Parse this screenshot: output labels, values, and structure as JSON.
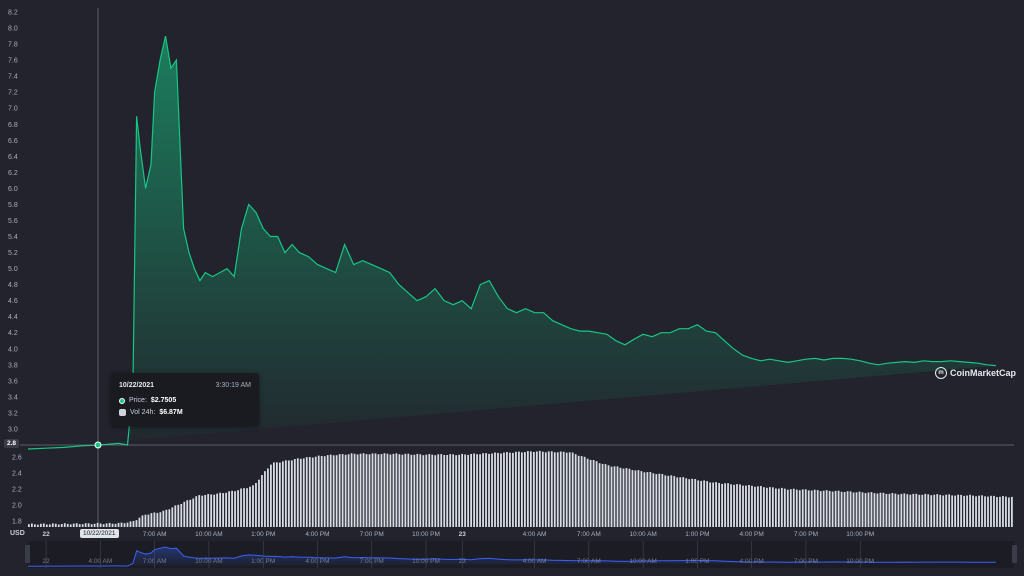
{
  "chart_data": {
    "type": "area",
    "currency_label": "USD",
    "price_axis": {
      "ticks": [
        "8.2",
        "8.0",
        "7.8",
        "7.6",
        "7.4",
        "7.2",
        "7.0",
        "6.8",
        "6.6",
        "6.4",
        "6.2",
        "6.0",
        "5.8",
        "5.6",
        "5.4",
        "5.2",
        "5.0",
        "4.8",
        "4.6",
        "4.4",
        "4.2",
        "4.0",
        "3.8",
        "3.6",
        "3.4",
        "3.2",
        "3.0"
      ],
      "range": [
        2.8,
        8.2
      ]
    },
    "volume_axis": {
      "ticks": [
        "2.6",
        "2.4",
        "2.2",
        "2.0",
        "1.8"
      ]
    },
    "x_ticks": [
      "22",
      "4:00 AM",
      "7:00 AM",
      "10:00 AM",
      "1:00 PM",
      "4:00 PM",
      "7:00 PM",
      "10:00 PM",
      "23",
      "4:00 AM",
      "7:00 AM",
      "10:00 AM",
      "1:00 PM",
      "4:00 PM",
      "7:00 PM",
      "10:00 PM"
    ],
    "bold_x_ticks": [
      "22",
      "23"
    ],
    "series": [
      {
        "x_hours": [
          0,
          1,
          2,
          3,
          4,
          5,
          5.5,
          5.8,
          6.0,
          6.2,
          6.5,
          6.8,
          7.0,
          7.3,
          7.6,
          7.9,
          8.2,
          8.6,
          8.9,
          9.2,
          9.5,
          9.8,
          10.2,
          10.6,
          11.0,
          11.4,
          11.8,
          12.2,
          12.6,
          13.0,
          13.4,
          13.8,
          14.2,
          14.6,
          15.0,
          15.5,
          16.0,
          16.5,
          17.0,
          17.5,
          18.0,
          18.5,
          19.0,
          19.5,
          20.0,
          20.5,
          21.0,
          21.5,
          22.0,
          22.5,
          23.0,
          23.5,
          24.0,
          24.5,
          25.0,
          25.5,
          26.0,
          26.5,
          27.0,
          27.5,
          28.0,
          28.5,
          29.0,
          29.5,
          30.0,
          30.5,
          31.0,
          31.5,
          32.0,
          32.5,
          33.0,
          33.5,
          34.0,
          34.5,
          35.0,
          35.5,
          36.0,
          36.5,
          37.0,
          37.5,
          38.0,
          38.5,
          39.0,
          39.5,
          40.0,
          40.5,
          41.0,
          41.5,
          42.0,
          42.5,
          43.0,
          43.5,
          44.0,
          44.5,
          45.0,
          45.5,
          46.0,
          46.5,
          47.0,
          47.5,
          48.0,
          48.5,
          49.0,
          49.5,
          50.0,
          50.5,
          51.0,
          51.5,
          52.0,
          52.5,
          53.0,
          53.5,
          54.0,
          54.5
        ],
        "price": [
          2.75,
          2.76,
          2.77,
          2.79,
          2.8,
          2.82,
          2.8,
          3.5,
          6.9,
          6.5,
          6.0,
          6.3,
          7.2,
          7.6,
          7.9,
          7.5,
          7.6,
          5.5,
          5.2,
          5.0,
          4.85,
          4.95,
          4.9,
          4.95,
          5.0,
          4.9,
          5.5,
          5.8,
          5.7,
          5.5,
          5.4,
          5.4,
          5.2,
          5.3,
          5.2,
          5.15,
          5.05,
          5.0,
          4.95,
          5.3,
          5.05,
          5.1,
          5.05,
          5.0,
          4.95,
          4.8,
          4.7,
          4.6,
          4.65,
          4.75,
          4.6,
          4.55,
          4.6,
          4.5,
          4.8,
          4.85,
          4.65,
          4.5,
          4.45,
          4.5,
          4.45,
          4.45,
          4.35,
          4.3,
          4.25,
          4.22,
          4.22,
          4.2,
          4.18,
          4.1,
          4.05,
          4.12,
          4.18,
          4.15,
          4.2,
          4.2,
          4.25,
          4.25,
          4.3,
          4.22,
          4.2,
          4.1,
          4.0,
          3.92,
          3.88,
          3.85,
          3.87,
          3.85,
          3.83,
          3.85,
          3.87,
          3.88,
          3.86,
          3.88,
          3.88,
          3.87,
          3.85,
          3.82,
          3.8,
          3.82,
          3.83,
          3.84,
          3.83,
          3.85,
          3.84,
          3.84,
          3.85,
          3.84,
          3.83,
          3.82,
          3.8,
          3.79
        ]
      }
    ],
    "volume": {
      "x_hours": [
        0,
        5,
        5.8,
        6.5,
        7.5,
        8.5,
        9.5,
        10.5,
        11.5,
        12.5,
        13.5,
        15,
        16.5,
        18,
        20,
        22,
        24,
        26,
        28,
        30,
        31,
        32,
        34,
        36,
        38,
        40,
        42,
        44,
        46,
        48,
        50,
        52,
        54.5
      ],
      "values": [
        1.76,
        1.77,
        1.79,
        1.88,
        1.92,
        2.02,
        2.12,
        2.14,
        2.18,
        2.24,
        2.52,
        2.58,
        2.62,
        2.64,
        2.64,
        2.63,
        2.63,
        2.65,
        2.67,
        2.66,
        2.58,
        2.5,
        2.42,
        2.35,
        2.28,
        2.24,
        2.2,
        2.18,
        2.16,
        2.14,
        2.13,
        2.12,
        2.1
      ]
    },
    "tooltip": {
      "date": "10/22/2021",
      "time": "3:30:19 AM",
      "price_label": "Price:",
      "price_value": "$2.7505",
      "vol_label": "Vol 24h:",
      "vol_value": "$6.87M"
    },
    "cursor_date": "10/22/2021",
    "current_price_tag": "2.8",
    "watermark": "CoinMarketCap",
    "colors": {
      "background": "#22232c",
      "line": "#16c784",
      "area_top": "#16c784",
      "volume_bar": "#d8dce4",
      "navigator_line": "#3861fb"
    }
  }
}
